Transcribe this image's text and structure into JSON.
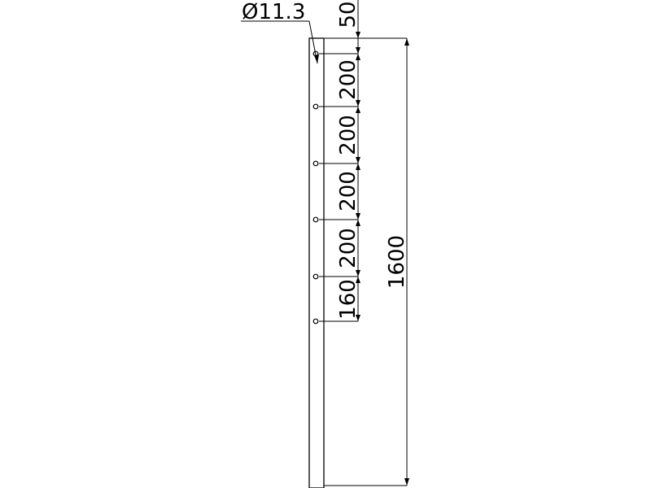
{
  "diameter_label": "Ø11.3",
  "top_offset_label": "50",
  "spacing_labels": [
    "200",
    "200",
    "200",
    "200",
    "160"
  ],
  "total_length_label": "1600",
  "colors": {
    "line": "#000000",
    "background": "#ffffff"
  }
}
